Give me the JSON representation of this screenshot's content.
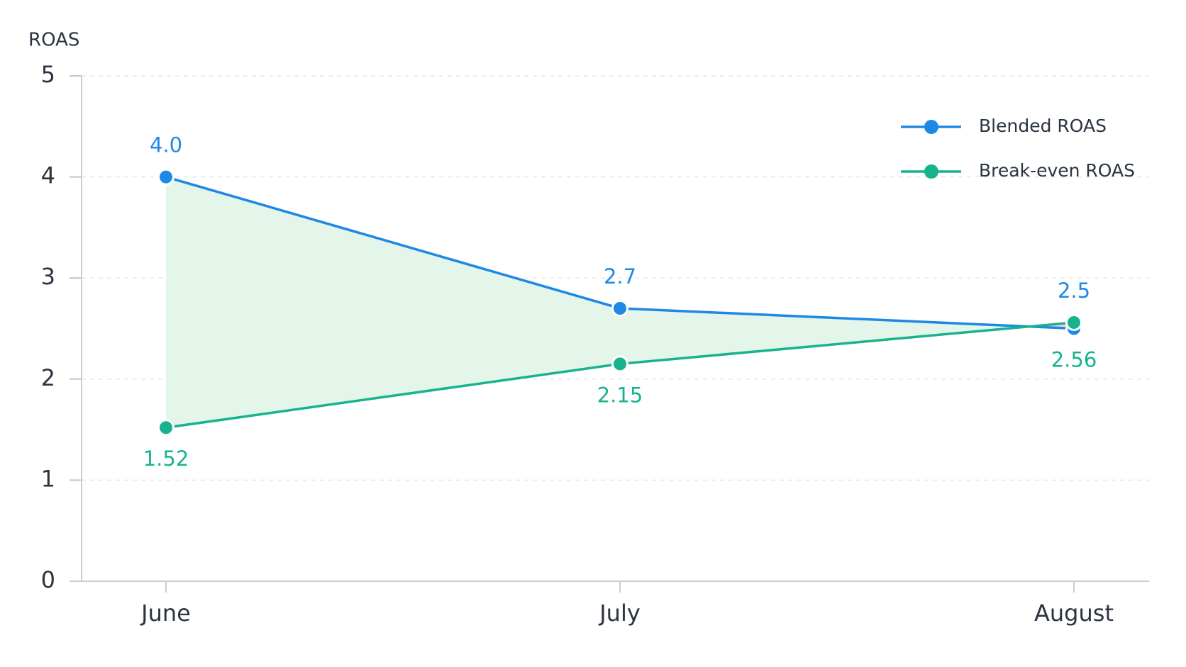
{
  "chart_data": {
    "type": "line",
    "y_label": "ROAS",
    "categories": [
      "June",
      "July",
      "August"
    ],
    "series": [
      {
        "name": "Blended ROAS",
        "color": "#1e88e5",
        "values": [
          4.0,
          2.7,
          2.5
        ],
        "value_labels": [
          "4.0",
          "2.7",
          "2.5"
        ]
      },
      {
        "name": "Break-even ROAS",
        "color": "#17b38f",
        "values": [
          1.52,
          2.15,
          2.56
        ]
      }
    ],
    "fill_above_color": "#e4f5ea",
    "fill_below_color": "#f7cfcf",
    "ylim": [
      0,
      5
    ],
    "yticks": [
      0,
      1,
      2,
      3,
      4,
      5
    ],
    "grid": true,
    "legend": "top-right"
  }
}
